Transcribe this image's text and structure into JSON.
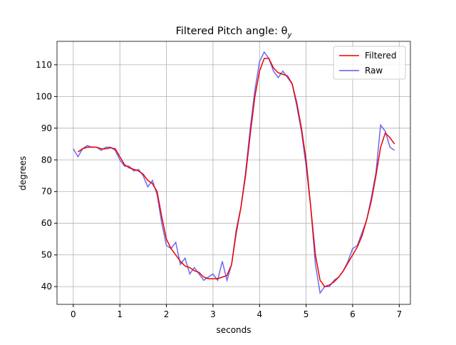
{
  "chart_data": {
    "type": "line",
    "title": "Filtered Pitch angle: θ",
    "title_subscript": "y",
    "x_label": "seconds",
    "y_label": "degrees",
    "x": [
      0,
      0.1,
      0.2,
      0.3,
      0.4,
      0.5,
      0.6,
      0.7,
      0.8,
      0.9,
      1,
      1.1,
      1.2,
      1.3,
      1.4,
      1.5,
      1.6,
      1.7,
      1.8,
      1.9,
      2,
      2.1,
      2.2,
      2.3,
      2.4,
      2.5,
      2.6,
      2.7,
      2.8,
      2.9,
      3,
      3.1,
      3.2,
      3.3,
      3.4,
      3.5,
      3.6,
      3.7,
      3.8,
      3.9,
      4,
      4.1,
      4.2,
      4.3,
      4.4,
      4.5,
      4.6,
      4.7,
      4.8,
      4.9,
      5,
      5.1,
      5.2,
      5.3,
      5.4,
      5.5,
      5.6,
      5.7,
      5.8,
      5.9,
      6,
      6.1,
      6.2,
      6.3,
      6.4,
      6.5,
      6.6,
      6.7,
      6.8,
      6.9
    ],
    "series": [
      {
        "name": "Filtered",
        "color": "#ee0000",
        "values": [
          null,
          82.5,
          83.5,
          84,
          84,
          84,
          83.5,
          83.5,
          83.8,
          83.5,
          81,
          78.5,
          77.5,
          77,
          76.5,
          75.5,
          73.5,
          72.5,
          70,
          62,
          55,
          52,
          50,
          48,
          46.5,
          46,
          45,
          44.5,
          43,
          42.5,
          42.5,
          42.5,
          43,
          43.5,
          47,
          57,
          65,
          75,
          88,
          100,
          108,
          112,
          112,
          109,
          107.5,
          107,
          106.5,
          104,
          98,
          90,
          80,
          65,
          50,
          42,
          40,
          40.5,
          41.5,
          43,
          45,
          47.5,
          50,
          52.5,
          56,
          61,
          67,
          75,
          84,
          88.5,
          87,
          85
        ]
      },
      {
        "name": "Raw",
        "color": "#5a5aee",
        "values": [
          83.5,
          81,
          83.5,
          84.5,
          84,
          84,
          83,
          84,
          84,
          83,
          80,
          78,
          78,
          76.5,
          77,
          75,
          71.5,
          73.5,
          69,
          60,
          53,
          52,
          54,
          47,
          49,
          44,
          46,
          44,
          42,
          43,
          44,
          42,
          48,
          42,
          47,
          58,
          65,
          76,
          90,
          102,
          111,
          114,
          112,
          108,
          106,
          108,
          106,
          104,
          97,
          89,
          78,
          65,
          47,
          38,
          40,
          40,
          42,
          43,
          45,
          48,
          52,
          53,
          57,
          61,
          68,
          76,
          91,
          89,
          84,
          83
        ]
      }
    ],
    "xlim": [
      -0.35,
      7.24
    ],
    "ylim": [
      34.4,
      117.4
    ],
    "xticks": [
      0,
      1,
      2,
      3,
      4,
      5,
      6,
      7
    ],
    "yticks": [
      40,
      50,
      60,
      70,
      80,
      90,
      100,
      110
    ],
    "grid": true,
    "legend": "upper-right"
  }
}
